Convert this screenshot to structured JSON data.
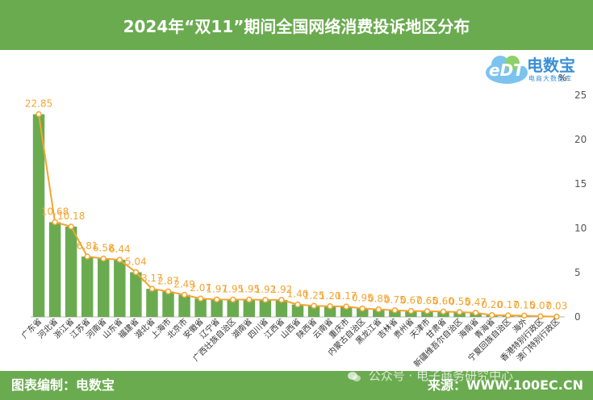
{
  "title": "2024年“双11”期间全国网络消费投诉地区分布",
  "footer": {
    "credit": "图表编制：电数宝",
    "source": "来源：WWW.100EC.CN"
  },
  "watermark": "公众号 · 电子商务研究中心",
  "logo": {
    "name": "电数宝",
    "subtitle": "电商大数据库",
    "mark": "eDT"
  },
  "colors": {
    "header_bg": "#6aab4f",
    "bar": "#6aab4f",
    "line": "#f2a531",
    "value_label": "#f2a531",
    "logo_blue": "#3a8fd6"
  },
  "chart_data": {
    "type": "bar",
    "overlay_line": true,
    "y_unit": "%",
    "ylim": [
      0,
      25
    ],
    "yticks": [
      0,
      5,
      10,
      15,
      20,
      25
    ],
    "grid": false,
    "categories": [
      "广东省",
      "河北省",
      "浙江省",
      "江苏省",
      "河南省",
      "山东省",
      "福建省",
      "湖北省",
      "上海市",
      "北京市",
      "安徽省",
      "辽宁省",
      "广西壮族自治区",
      "湖南省",
      "四川省",
      "江西省",
      "山西省",
      "陕西省",
      "云南省",
      "重庆市",
      "内蒙古自治区",
      "黑龙江省",
      "吉林省",
      "贵州省",
      "天津市",
      "甘肃省",
      "新疆维吾尔自治区",
      "海南省",
      "青海省",
      "宁夏回族自治区",
      "海外",
      "香港特别行政区",
      "澳门特别行政区"
    ],
    "values": [
      22.85,
      10.68,
      10.18,
      6.81,
      6.58,
      6.44,
      5.04,
      3.17,
      2.87,
      2.49,
      2.07,
      1.97,
      1.95,
      1.95,
      1.92,
      1.92,
      1.4,
      1.25,
      1.2,
      1.17,
      0.95,
      0.85,
      0.75,
      0.67,
      0.65,
      0.6,
      0.55,
      0.47,
      0.2,
      0.17,
      0.15,
      0.07,
      0.03
    ],
    "labels": [
      "22.85",
      "10.68",
      "10.18",
      "6.81",
      "6.58",
      "6.44",
      "5.04",
      "3.17",
      "2.87",
      "2.49",
      "2.07",
      "1.97",
      "1.95",
      "1.95",
      "1.92",
      "1.92",
      "1.40",
      "1.25",
      "1.20",
      "1.17",
      "0.95",
      "0.85",
      "0.75",
      "0.67",
      "0.65",
      "0.60",
      "0.55",
      "0.47",
      "0.20",
      "0.17",
      "0.15",
      "0.07",
      "0.03"
    ]
  }
}
